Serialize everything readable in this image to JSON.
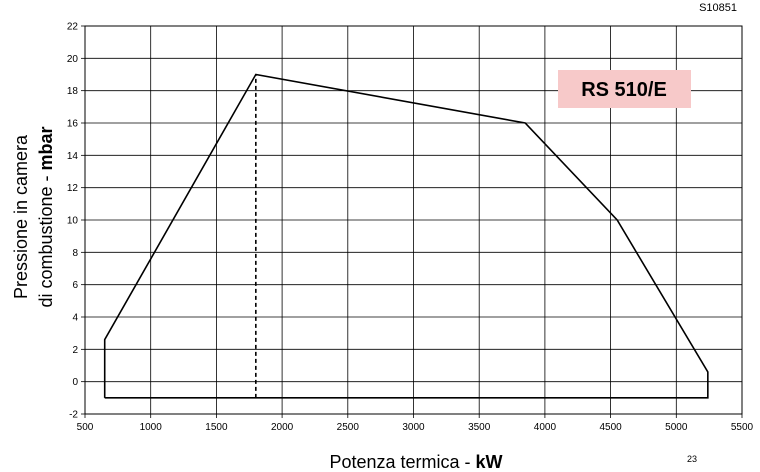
{
  "chart_data": {
    "type": "line",
    "drawing_code": "S10851",
    "model_label": "RS 510/E",
    "xlabel_text": "Potenza termica - ",
    "xlabel_unit": "kW",
    "ylabel_line1": "Pressione in camera",
    "ylabel_line2_text": "di combustione - ",
    "ylabel_line2_unit": "mbar",
    "page_number": "23",
    "xlim": [
      500,
      5500
    ],
    "ylim": [
      -2,
      22
    ],
    "x_ticks": [
      500,
      1000,
      1500,
      2000,
      2500,
      3000,
      3500,
      4000,
      4500,
      5000,
      5500
    ],
    "y_ticks": [
      -2,
      0,
      2,
      4,
      6,
      8,
      10,
      12,
      14,
      16,
      18,
      20,
      22
    ],
    "grid": true,
    "series": [
      {
        "points": [
          {
            "x": 650,
            "y": -1
          },
          {
            "x": 650,
            "y": 2.6
          },
          {
            "x": 1800,
            "y": 19
          },
          {
            "x": 3850,
            "y": 16
          },
          {
            "x": 4550,
            "y": 10
          },
          {
            "x": 5240,
            "y": 0.6
          },
          {
            "x": 5240,
            "y": -1
          },
          {
            "x": 650,
            "y": -1
          }
        ]
      }
    ],
    "dashed_line": {
      "x": 1800,
      "y_from": -1,
      "y_to": 19
    },
    "colors": {
      "label_box": "#f7c9c9",
      "line": "#000000",
      "grid": "#000000"
    }
  }
}
